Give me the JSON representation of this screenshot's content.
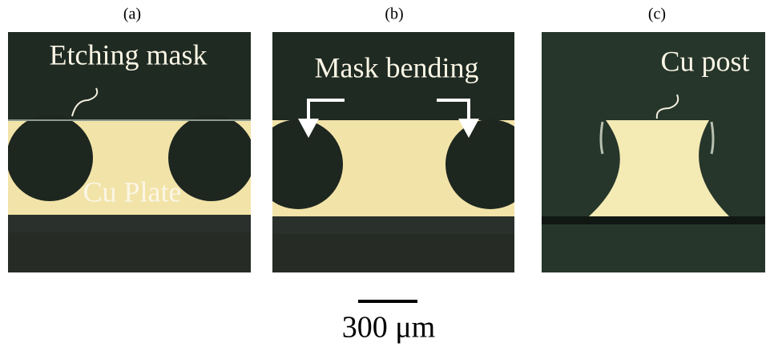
{
  "panels": [
    {
      "label": "(a)",
      "annotations": [
        "Etching mask",
        "Cu Plate"
      ]
    },
    {
      "label": "(b)",
      "annotations": [
        "Mask bending"
      ]
    },
    {
      "label": "(c)",
      "annotations": [
        "Cu post"
      ]
    }
  ],
  "scale_bar": "300 μm"
}
